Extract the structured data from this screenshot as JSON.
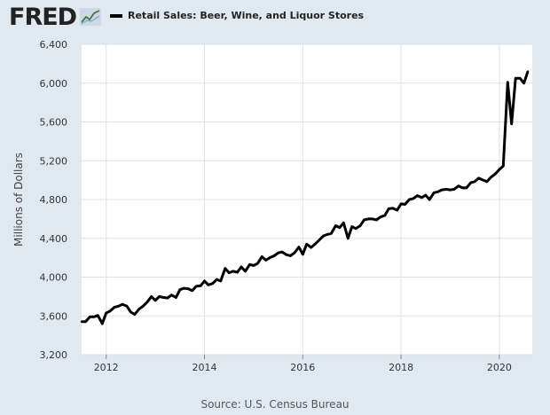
{
  "header": {
    "logo_text": "FRED",
    "logo_graph_icon": "trend-graph-icon"
  },
  "footer": {
    "source": "Source: U.S. Census Bureau"
  },
  "chart_data": {
    "type": "line",
    "title": "",
    "xlabel": "",
    "ylabel": "Millions of Dollars",
    "legend": {
      "placement": "top-left",
      "entries": [
        "Retail Sales: Beer, Wine, and Liquor Stores"
      ]
    },
    "grid": true,
    "xlim": [
      2011.5,
      2020.67
    ],
    "ylim": [
      3200,
      6400
    ],
    "x_ticks": [
      2012,
      2014,
      2016,
      2018,
      2020
    ],
    "x_tick_labels": [
      "2012",
      "2014",
      "2016",
      "2018",
      "2020"
    ],
    "y_ticks": [
      3200,
      3600,
      4000,
      4400,
      4800,
      5200,
      5600,
      6000,
      6400
    ],
    "y_tick_labels": [
      "3,200",
      "3,600",
      "4,000",
      "4,400",
      "4,800",
      "5,200",
      "5,600",
      "6,000",
      "6,400"
    ],
    "series": [
      {
        "name": "Retail Sales: Beer, Wine, and Liquor Stores",
        "color": "#000000",
        "points": [
          [
            2011.5,
            3540
          ],
          [
            2011.58,
            3540
          ],
          [
            2011.67,
            3590
          ],
          [
            2011.75,
            3590
          ],
          [
            2011.83,
            3605
          ],
          [
            2011.92,
            3520
          ],
          [
            2012.0,
            3630
          ],
          [
            2012.08,
            3650
          ],
          [
            2012.17,
            3690
          ],
          [
            2012.25,
            3700
          ],
          [
            2012.33,
            3720
          ],
          [
            2012.42,
            3700
          ],
          [
            2012.5,
            3640
          ],
          [
            2012.58,
            3615
          ],
          [
            2012.67,
            3670
          ],
          [
            2012.75,
            3700
          ],
          [
            2012.83,
            3740
          ],
          [
            2012.92,
            3800
          ],
          [
            2013.0,
            3760
          ],
          [
            2013.08,
            3800
          ],
          [
            2013.17,
            3790
          ],
          [
            2013.25,
            3785
          ],
          [
            2013.33,
            3815
          ],
          [
            2013.42,
            3790
          ],
          [
            2013.5,
            3870
          ],
          [
            2013.58,
            3885
          ],
          [
            2013.67,
            3880
          ],
          [
            2013.75,
            3860
          ],
          [
            2013.83,
            3905
          ],
          [
            2013.92,
            3910
          ],
          [
            2014.0,
            3960
          ],
          [
            2014.08,
            3920
          ],
          [
            2014.17,
            3935
          ],
          [
            2014.25,
            3975
          ],
          [
            2014.33,
            3960
          ],
          [
            2014.42,
            4090
          ],
          [
            2014.5,
            4045
          ],
          [
            2014.58,
            4060
          ],
          [
            2014.67,
            4050
          ],
          [
            2014.75,
            4105
          ],
          [
            2014.83,
            4060
          ],
          [
            2014.92,
            4130
          ],
          [
            2015.0,
            4120
          ],
          [
            2015.08,
            4140
          ],
          [
            2015.17,
            4210
          ],
          [
            2015.25,
            4175
          ],
          [
            2015.33,
            4200
          ],
          [
            2015.42,
            4220
          ],
          [
            2015.5,
            4250
          ],
          [
            2015.58,
            4260
          ],
          [
            2015.67,
            4230
          ],
          [
            2015.75,
            4220
          ],
          [
            2015.83,
            4250
          ],
          [
            2015.92,
            4310
          ],
          [
            2016.0,
            4235
          ],
          [
            2016.08,
            4340
          ],
          [
            2016.17,
            4305
          ],
          [
            2016.25,
            4340
          ],
          [
            2016.33,
            4380
          ],
          [
            2016.42,
            4425
          ],
          [
            2016.5,
            4440
          ],
          [
            2016.58,
            4450
          ],
          [
            2016.67,
            4530
          ],
          [
            2016.75,
            4510
          ],
          [
            2016.83,
            4560
          ],
          [
            2016.92,
            4400
          ],
          [
            2017.0,
            4520
          ],
          [
            2017.08,
            4500
          ],
          [
            2017.17,
            4530
          ],
          [
            2017.25,
            4590
          ],
          [
            2017.33,
            4600
          ],
          [
            2017.42,
            4600
          ],
          [
            2017.5,
            4590
          ],
          [
            2017.58,
            4620
          ],
          [
            2017.67,
            4635
          ],
          [
            2017.75,
            4705
          ],
          [
            2017.83,
            4710
          ],
          [
            2017.92,
            4690
          ],
          [
            2018.0,
            4755
          ],
          [
            2018.08,
            4750
          ],
          [
            2018.17,
            4800
          ],
          [
            2018.25,
            4810
          ],
          [
            2018.33,
            4840
          ],
          [
            2018.42,
            4820
          ],
          [
            2018.5,
            4845
          ],
          [
            2018.58,
            4800
          ],
          [
            2018.67,
            4870
          ],
          [
            2018.75,
            4880
          ],
          [
            2018.83,
            4900
          ],
          [
            2018.92,
            4905
          ],
          [
            2019.0,
            4900
          ],
          [
            2019.08,
            4905
          ],
          [
            2019.17,
            4940
          ],
          [
            2019.25,
            4920
          ],
          [
            2019.33,
            4920
          ],
          [
            2019.42,
            4975
          ],
          [
            2019.5,
            4985
          ],
          [
            2019.58,
            5020
          ],
          [
            2019.67,
            5000
          ],
          [
            2019.75,
            4985
          ],
          [
            2019.83,
            5030
          ],
          [
            2019.92,
            5065
          ],
          [
            2020.0,
            5110
          ],
          [
            2020.08,
            5145
          ],
          [
            2020.17,
            6010
          ],
          [
            2020.25,
            5580
          ],
          [
            2020.33,
            6050
          ],
          [
            2020.42,
            6050
          ],
          [
            2020.5,
            6000
          ],
          [
            2020.58,
            6120
          ]
        ]
      }
    ]
  }
}
